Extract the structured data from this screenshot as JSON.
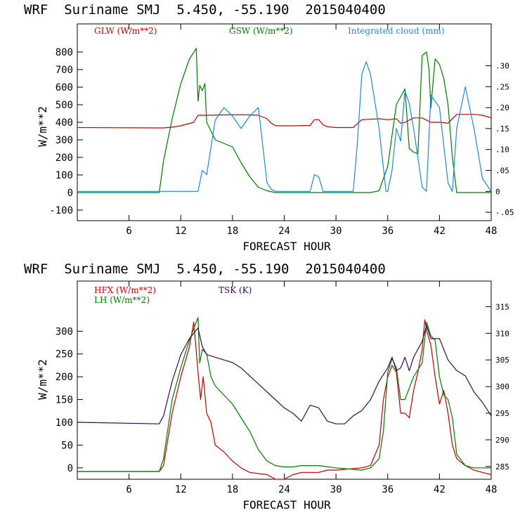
{
  "chart_data": [
    {
      "type": "line",
      "title": "WRF  Suriname SMJ  5.450, -55.190  2015040400",
      "xlabel": "FORECAST HOUR",
      "ylabel": "W/m**2",
      "xlim": [
        0,
        48
      ],
      "ylim": [
        -160,
        960
      ],
      "xticks": [
        6,
        12,
        18,
        24,
        30,
        36,
        42,
        48
      ],
      "yticks": [
        -100,
        0,
        100,
        200,
        300,
        400,
        500,
        600,
        700,
        800
      ],
      "y2lim": [
        -0.07,
        0.4
      ],
      "y2ticks": [
        -0.05,
        0,
        0.05,
        0.1,
        0.15,
        0.2,
        0.25,
        0.3
      ],
      "y2ticklabels": [
        "-.05",
        "0",
        ".05",
        ".10",
        ".15",
        ".20",
        ".25",
        ".30"
      ],
      "series": [
        {
          "name": "GLW (W/m**2)",
          "color": "#c00000",
          "axis": "left",
          "x": [
            0,
            9,
            10,
            11,
            12,
            13.5,
            14,
            15,
            17,
            19,
            20,
            21,
            22,
            22.5,
            23,
            24,
            25,
            27,
            27.5,
            28,
            28.5,
            29,
            30,
            32,
            33,
            35,
            36,
            37,
            37.5,
            38,
            39,
            40,
            41,
            42,
            43,
            44,
            45,
            46,
            47,
            48
          ],
          "y": [
            370,
            368,
            368,
            372,
            380,
            400,
            440,
            440,
            442,
            443,
            442,
            440,
            420,
            395,
            380,
            380,
            380,
            382,
            415,
            415,
            385,
            375,
            370,
            370,
            415,
            420,
            415,
            420,
            395,
            400,
            425,
            425,
            400,
            400,
            395,
            445,
            445,
            445,
            440,
            425
          ]
        },
        {
          "name": "GSW (W/m**2)",
          "color": "#007a00",
          "axis": "left",
          "x": [
            0,
            9.5,
            10,
            11,
            12,
            13,
            13.8,
            14,
            14.2,
            14.5,
            14.8,
            15,
            16,
            17,
            18,
            19,
            20,
            21,
            22,
            23,
            33,
            34,
            35,
            35.5,
            36,
            37,
            38,
            38.5,
            39,
            39.5,
            40,
            40.5,
            40.8,
            41,
            41.5,
            42,
            42.5,
            43,
            43.5,
            44,
            48
          ],
          "y": [
            0,
            0,
            180,
            420,
            620,
            760,
            820,
            520,
            610,
            580,
            620,
            400,
            300,
            280,
            260,
            170,
            90,
            30,
            10,
            0,
            0,
            0,
            10,
            80,
            150,
            500,
            590,
            250,
            230,
            220,
            780,
            800,
            700,
            480,
            760,
            730,
            650,
            500,
            200,
            0,
            0
          ]
        },
        {
          "name": "Integrated cloud (mm)",
          "color": "#1f8ad0",
          "axis": "right",
          "x": [
            0,
            14,
            14.5,
            15,
            16,
            17,
            18,
            19,
            20,
            21,
            22,
            22.5,
            23,
            27,
            27.5,
            28,
            28.5,
            32,
            32.5,
            33,
            33.5,
            34,
            35,
            35.8,
            36,
            36.5,
            37,
            37.5,
            38,
            38.5,
            39,
            40,
            40.5,
            41,
            42,
            43,
            43.5,
            44,
            45,
            46,
            47,
            48
          ],
          "y": [
            0,
            0,
            0.05,
            0.04,
            0.17,
            0.2,
            0.18,
            0.15,
            0.18,
            0.2,
            0.02,
            0.005,
            0,
            0,
            0.04,
            0.035,
            0,
            0,
            0.12,
            0.28,
            0.31,
            0.28,
            0.15,
            0,
            0,
            0.05,
            0.15,
            0.12,
            0.24,
            0.21,
            0.15,
            0.01,
            0,
            0.23,
            0.2,
            0.02,
            0,
            0.15,
            0.25,
            0.15,
            0.03,
            0
          ]
        }
      ],
      "legend": "top"
    },
    {
      "type": "line",
      "title": "WRF  Suriname SMJ  5.450, -55.190  2015040400",
      "xlabel": "FORECAST HOUR",
      "ylabel": "W/m**2",
      "xlim": [
        0,
        48
      ],
      "ylim": [
        -25,
        410
      ],
      "xticks": [
        6,
        12,
        18,
        24,
        30,
        36,
        42,
        48
      ],
      "yticks": [
        0,
        50,
        100,
        150,
        200,
        250,
        300
      ],
      "y2lim": [
        282.6,
        319.8
      ],
      "y2ticks": [
        285,
        290,
        295,
        300,
        305,
        310,
        315
      ],
      "y2ticklabels": [
        "285",
        "290",
        "295",
        "300",
        "305",
        "310",
        "315"
      ],
      "series": [
        {
          "name": "HFX (W/m**2)",
          "color": "#c00000",
          "axis": "left",
          "x": [
            0,
            9.5,
            10,
            11,
            12,
            13,
            13.5,
            14,
            14.3,
            14.6,
            15,
            15.5,
            16,
            17,
            18,
            19,
            20,
            22,
            23,
            24,
            25,
            26,
            28,
            29,
            30,
            33,
            34,
            35,
            35.5,
            36,
            36.5,
            37,
            37.5,
            38,
            38.5,
            39,
            39.5,
            40,
            40.3,
            40.6,
            41,
            41.5,
            42,
            42.5,
            43,
            43.5,
            44,
            45,
            46,
            47,
            48
          ],
          "y": [
            -8,
            -8,
            5,
            120,
            200,
            265,
            320,
            210,
            150,
            200,
            120,
            100,
            50,
            35,
            15,
            0,
            -10,
            -15,
            -25,
            -25,
            -15,
            -10,
            -10,
            -5,
            -5,
            0,
            5,
            50,
            150,
            200,
            225,
            210,
            120,
            120,
            110,
            170,
            210,
            260,
            325,
            295,
            270,
            200,
            140,
            170,
            120,
            50,
            20,
            5,
            -5,
            -10,
            -15
          ]
        },
        {
          "name": "LH (W/m**2)",
          "color": "#007a00",
          "axis": "left",
          "x": [
            0,
            9.5,
            10,
            11,
            12,
            13,
            14,
            14.2,
            14.5,
            15,
            15.5,
            16,
            17,
            18,
            19,
            20,
            21,
            22,
            23,
            24,
            25,
            26,
            28,
            30,
            33,
            34,
            35,
            35.5,
            36,
            36.5,
            37,
            37.5,
            38,
            39,
            40,
            40.5,
            41,
            41.5,
            42,
            42.5,
            43,
            43.5,
            44,
            45,
            46,
            48
          ],
          "y": [
            -8,
            -8,
            20,
            150,
            220,
            280,
            330,
            230,
            260,
            250,
            200,
            180,
            160,
            140,
            110,
            80,
            40,
            15,
            5,
            2,
            2,
            5,
            5,
            0,
            -5,
            0,
            20,
            80,
            210,
            240,
            220,
            150,
            150,
            200,
            230,
            320,
            290,
            280,
            200,
            160,
            150,
            110,
            30,
            5,
            0,
            0
          ]
        },
        {
          "name": "TSK (K)",
          "color": "#3a0a4e",
          "axis": "right",
          "x": [
            0,
            9.5,
            10,
            11,
            12,
            13,
            14,
            14.5,
            15,
            16,
            17,
            18,
            19,
            20,
            21,
            22,
            23,
            24,
            25,
            26,
            27,
            28,
            29,
            30,
            31,
            32,
            33,
            34,
            35,
            36,
            36.5,
            37,
            37.5,
            38,
            38.5,
            39,
            40,
            40.5,
            41,
            42,
            43,
            44,
            45,
            46,
            47,
            48
          ],
          "y": [
            293.3,
            293.0,
            294.5,
            301.0,
            306.0,
            309.0,
            311.0,
            307.5,
            306.0,
            305.5,
            305.0,
            304.5,
            303.5,
            302.0,
            300.5,
            299.0,
            297.5,
            296.0,
            295.0,
            293.5,
            296.5,
            296.0,
            293.5,
            293.0,
            293.0,
            294.5,
            295.5,
            297.5,
            301.0,
            303.5,
            305.5,
            303.0,
            303.5,
            305.5,
            303.0,
            305.5,
            308.5,
            311.5,
            309.0,
            309.0,
            305.0,
            303.0,
            302.0,
            299.0,
            297.0,
            294.5
          ]
        }
      ],
      "legend": "top-left"
    }
  ]
}
